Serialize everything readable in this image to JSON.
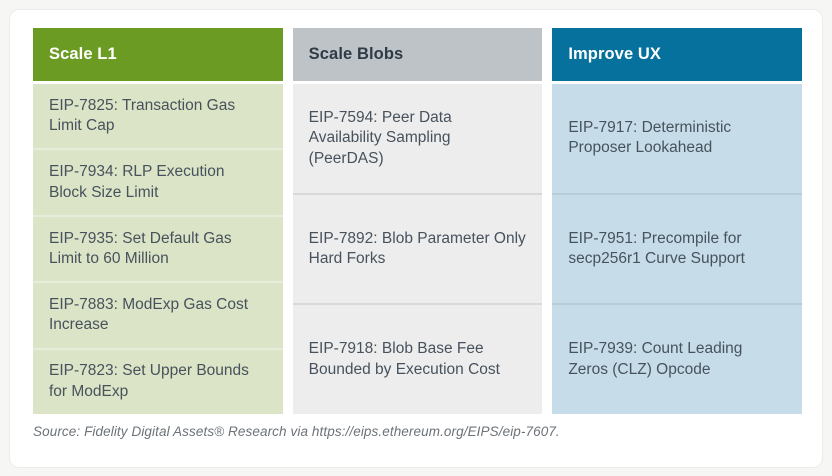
{
  "figure": {
    "description": "Three-column categorized table of Ethereum Improvement Proposals (EIPs)"
  },
  "columns": [
    {
      "id": "scale-l1",
      "header": "Scale L1",
      "header_bg": "#6c9b24",
      "header_color": "#ffffff",
      "cell_bg": "#dbe4c6",
      "divider": "#e7ecdb",
      "items": [
        "EIP-7825: Transaction Gas Limit Cap",
        "EIP-7934: RLP Execution Block Size Limit",
        "EIP-7935: Set Default Gas Limit to 60 Million",
        "EIP-7883: ModExp Gas Cost Increase",
        "EIP-7823: Set Upper Bounds for ModExp"
      ]
    },
    {
      "id": "scale-blobs",
      "header": "Scale Blobs",
      "header_bg": "#bec3c8",
      "header_color": "#2e3a44",
      "cell_bg": "#ededee",
      "divider": "#d7d9da",
      "items": [
        "EIP-7594: Peer Data Availability Sampling (PeerDAS)",
        "EIP-7892: Blob Parameter Only Hard Forks",
        "EIP-7918: Blob Base Fee Bounded by Execution Cost"
      ]
    },
    {
      "id": "improve-ux",
      "header": "Improve UX",
      "header_bg": "#06719d",
      "header_color": "#ffffff",
      "cell_bg": "#c6dde9",
      "divider": "#b6ccd7",
      "items": [
        "EIP-7917: Deterministic Proposer Lookahead",
        "EIP-7951: Precompile for secp256r1 Curve Support",
        "EIP-7939: Count Leading Zeros (CLZ) Opcode"
      ]
    }
  ],
  "source": {
    "text": "Source: Fidelity Digital Assets® Research via https://eips.ethereum.org/EIPS/eip-7607."
  }
}
